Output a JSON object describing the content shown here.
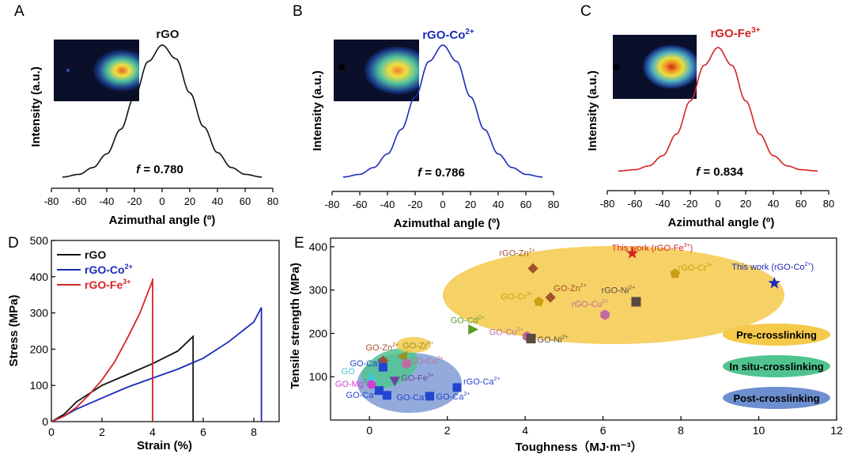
{
  "panels": {
    "A": {
      "letter": "A",
      "title": "rGO",
      "f_label": "f",
      "f_value": " = 0.780",
      "color": "#111111"
    },
    "B": {
      "letter": "B",
      "title": "rGO-Co",
      "title_sup": "2+",
      "f_label": "f",
      "f_value": " = 0.786",
      "color": "#1c2bb8"
    },
    "C": {
      "letter": "C",
      "title": "rGO-Fe",
      "title_sup": "3+",
      "f_label": "f",
      "f_value": " = 0.834",
      "color": "#d62424"
    }
  },
  "D": {
    "letter": "D"
  },
  "E": {
    "letter": "E"
  },
  "azimuthal_axes": {
    "xlabel": "Azimuthal angle (º)",
    "ylabel": "Intensity (a.u.)",
    "xticks": [
      "-80",
      "-60",
      "-40",
      "-20",
      "0",
      "20",
      "40",
      "60",
      "80"
    ]
  },
  "chart_data": [
    {
      "type": "line",
      "panel": "A",
      "title": "rGO",
      "xlabel": "Azimuthal angle (º)",
      "ylabel": "Intensity (a.u.)",
      "xlim": [
        -80,
        80
      ],
      "series": [
        {
          "name": "rGO",
          "x": [
            -72,
            -60,
            -50,
            -40,
            -30,
            -20,
            -10,
            0,
            10,
            20,
            30,
            40,
            50,
            60,
            72
          ],
          "y": [
            0.03,
            0.05,
            0.1,
            0.2,
            0.38,
            0.62,
            0.88,
            1.0,
            0.9,
            0.65,
            0.4,
            0.21,
            0.1,
            0.05,
            0.03
          ]
        }
      ],
      "annotation": "f = 0.780"
    },
    {
      "type": "line",
      "panel": "B",
      "title": "rGO-Co2+",
      "xlabel": "Azimuthal angle (º)",
      "ylabel": "Intensity (a.u.)",
      "xlim": [
        -80,
        80
      ],
      "series": [
        {
          "name": "rGO-Co2+",
          "x": [
            -72,
            -60,
            -50,
            -40,
            -30,
            -20,
            -10,
            0,
            10,
            20,
            30,
            40,
            50,
            60,
            72
          ],
          "y": [
            0.03,
            0.05,
            0.1,
            0.2,
            0.38,
            0.62,
            0.88,
            1.0,
            0.88,
            0.62,
            0.38,
            0.2,
            0.1,
            0.05,
            0.03
          ]
        }
      ],
      "annotation": "f = 0.786"
    },
    {
      "type": "line",
      "panel": "C",
      "title": "rGO-Fe3+",
      "xlabel": "Azimuthal angle (º)",
      "ylabel": "Intensity (a.u.)",
      "xlim": [
        -80,
        80
      ],
      "series": [
        {
          "name": "rGO-Fe3+",
          "x": [
            -72,
            -60,
            -50,
            -40,
            -30,
            -20,
            -10,
            0,
            10,
            20,
            30,
            40,
            50,
            60,
            72
          ],
          "y": [
            0.03,
            0.04,
            0.07,
            0.15,
            0.32,
            0.58,
            0.86,
            1.0,
            0.86,
            0.58,
            0.32,
            0.15,
            0.07,
            0.04,
            0.03
          ]
        }
      ],
      "annotation": "f = 0.834"
    },
    {
      "type": "line",
      "panel": "D",
      "xlabel": "Strain (%)",
      "ylabel": "Stress (MPa)",
      "xlim": [
        0,
        9
      ],
      "ylim": [
        0,
        500
      ],
      "xticks": [
        "0",
        "2",
        "4",
        "6",
        "8"
      ],
      "yticks": [
        "0",
        "100",
        "200",
        "300",
        "400",
        "500"
      ],
      "series": [
        {
          "name": "rGO",
          "color": "#111111",
          "x": [
            0,
            0.5,
            1,
            2,
            3,
            4,
            5,
            5.6,
            5.6
          ],
          "y": [
            0,
            20,
            55,
            100,
            130,
            160,
            195,
            235,
            0
          ]
        },
        {
          "name": "rGO-Co2+",
          "color": "#1c2bb8",
          "x": [
            0,
            0.5,
            1,
            2,
            3,
            4,
            5,
            6,
            7,
            8,
            8.3,
            8.3
          ],
          "y": [
            0,
            15,
            35,
            65,
            95,
            120,
            145,
            175,
            220,
            275,
            315,
            0
          ]
        },
        {
          "name": "rGO-Fe3+",
          "color": "#d62424",
          "x": [
            0,
            0.5,
            1,
            1.5,
            2,
            2.5,
            3,
            3.5,
            4,
            4,
            4
          ],
          "y": [
            0,
            15,
            40,
            75,
            115,
            165,
            230,
            300,
            390,
            395,
            0
          ]
        }
      ]
    },
    {
      "type": "scatter",
      "panel": "E",
      "xlabel": "Toughness（MJ·m⁻³）",
      "ylabel": "Tensile strength (MPa)",
      "xlim": [
        -1,
        12
      ],
      "ylim": [
        0,
        420
      ],
      "xticks": [
        "0",
        "2",
        "4",
        "6",
        "8",
        "10",
        "12"
      ],
      "yticks": [
        "100",
        "200",
        "300",
        "400"
      ],
      "regions": [
        {
          "label": "Pre-crosslinking",
          "color": "#f5c94a"
        },
        {
          "label": "In situ-crosslinking",
          "color": "#4fc48f"
        },
        {
          "label": "Post-crosslinking",
          "color": "#6d8fcf"
        }
      ],
      "points": [
        {
          "label": "This work (rGO-Fe",
          "sup": "3+",
          "tail": ")",
          "x": 6.75,
          "y": 385,
          "color": "#d62424",
          "marker": "star"
        },
        {
          "label": "This work (rGO-Co",
          "sup": "2+",
          "tail": ")",
          "x": 10.4,
          "y": 316,
          "color": "#1c2bb8",
          "marker": "star"
        },
        {
          "label": "rGO-Zn",
          "sup": "2+",
          "x": 4.2,
          "y": 350,
          "color": "#a0522d",
          "marker": "diamond"
        },
        {
          "label": "GO-Zn",
          "sup": "2+",
          "x": 4.65,
          "y": 283,
          "color": "#a0522d",
          "marker": "diamond"
        },
        {
          "label": "GO-Cr",
          "sup": "3+",
          "x": 4.35,
          "y": 273,
          "color": "#c9a010",
          "marker": "pentagon"
        },
        {
          "label": "rGO-Cr",
          "sup": "3+",
          "x": 7.85,
          "y": 338,
          "color": "#c9a010",
          "marker": "pentagon"
        },
        {
          "label": "rGO-Ni",
          "sup": "2+",
          "x": 6.85,
          "y": 273,
          "color": "#5a4a40",
          "marker": "square-half"
        },
        {
          "label": "rGO-Cu",
          "sup": "2+",
          "x": 6.05,
          "y": 243,
          "color": "#c06aa0",
          "marker": "hexagon"
        },
        {
          "label": "GO-Cd",
          "sup": "2+",
          "x": 2.65,
          "y": 209,
          "color": "#5aa020",
          "marker": "triangle-right"
        },
        {
          "label": "GO-Cu",
          "sup": "2+",
          "x": 4.05,
          "y": 193,
          "color": "#c06aa0",
          "marker": "hexagon"
        },
        {
          "label": "GO-Ni",
          "sup": "2+",
          "x": 4.15,
          "y": 188,
          "color": "#5a4a40",
          "marker": "square-half"
        },
        {
          "label": "GO-Zn",
          "sup": "2+",
          "x": 0.35,
          "y": 137,
          "color": "#a0522d",
          "marker": "diamond"
        },
        {
          "label": "GO-Zr",
          "sup": "4+",
          "x": 0.85,
          "y": 147,
          "color": "#9c9020",
          "marker": "triangle-left"
        },
        {
          "label": "GO-Ca",
          "sup": "2+",
          "x": 0.35,
          "y": 122,
          "color": "#2244d0",
          "marker": "square"
        },
        {
          "label": "GO-Cu",
          "sup": "2+",
          "x": 0.95,
          "y": 130,
          "color": "#c06aa0",
          "marker": "hexagon"
        },
        {
          "label": "GO",
          "sup": "",
          "x": 0.05,
          "y": 100,
          "color": "#40c8d8",
          "marker": "triangle"
        },
        {
          "label": "GO-Fe",
          "sup": "3+",
          "x": 0.65,
          "y": 90,
          "color": "#7040a0",
          "marker": "triangle-down"
        },
        {
          "label": "GO-Mg",
          "sup": "2+",
          "x": 0.05,
          "y": 82,
          "color": "#d040d0",
          "marker": "circle"
        },
        {
          "label": "GO-Ca",
          "sup": "2+",
          "x": 0.25,
          "y": 68,
          "color": "#2244d0",
          "marker": "square"
        },
        {
          "label": "GO-Ca",
          "sup": "2+",
          "x": 0.45,
          "y": 57,
          "color": "#2244d0",
          "marker": "square"
        },
        {
          "label": "GO-Ca",
          "sup": "2+",
          "x": 1.55,
          "y": 55,
          "color": "#2244d0",
          "marker": "square"
        },
        {
          "label": "rGO-Ca",
          "sup": "2+",
          "x": 2.25,
          "y": 75,
          "color": "#2244d0",
          "marker": "square"
        }
      ]
    }
  ],
  "D_legend": [
    {
      "label": "rGO",
      "sup": "",
      "color": "#111111"
    },
    {
      "label": "rGO-Co",
      "sup": "2+",
      "color": "#1c2bb8"
    },
    {
      "label": "rGO-Fe",
      "sup": "3+",
      "color": "#d62424"
    }
  ]
}
